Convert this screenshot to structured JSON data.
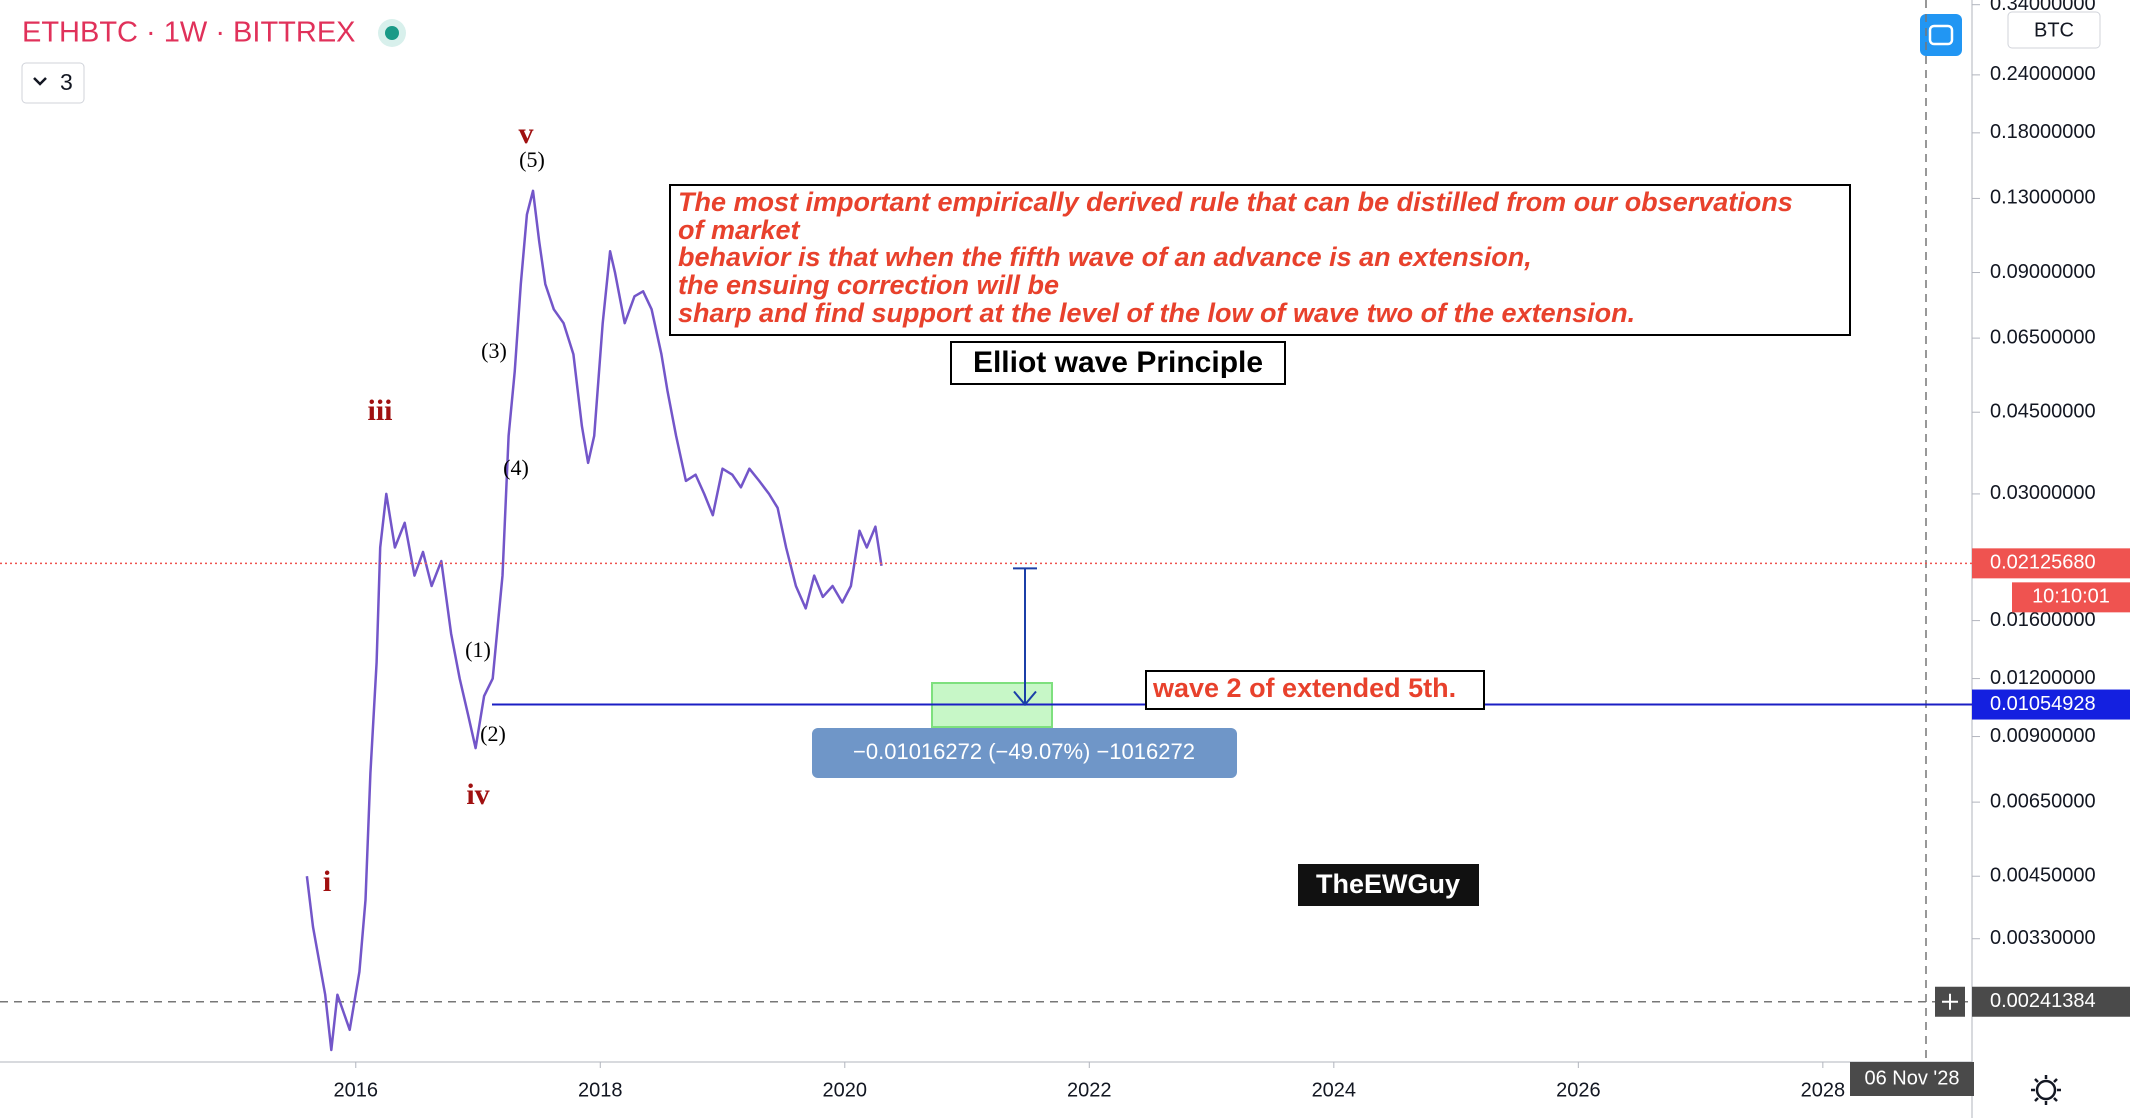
{
  "chart_data": {
    "type": "line",
    "title": "ETHBTC · 1W · BITTREX",
    "legend_toggle": "3",
    "currency": "BTC",
    "log_scale": true,
    "grid": false,
    "x": [
      2015.6,
      2015.65,
      2015.75,
      2015.8,
      2015.85,
      2015.95,
      2016.03,
      2016.08,
      2016.12,
      2016.17,
      2016.2,
      2016.25,
      2016.32,
      2016.4,
      2016.48,
      2016.55,
      2016.62,
      2016.7,
      2016.78,
      2016.85,
      2016.92,
      2016.98,
      2017.05,
      2017.12,
      2017.2,
      2017.25,
      2017.3,
      2017.35,
      2017.4,
      2017.45,
      2017.5,
      2017.55,
      2017.62,
      2017.7,
      2017.78,
      2017.85,
      2017.9,
      2017.95,
      2018.02,
      2018.08,
      2018.12,
      2018.2,
      2018.28,
      2018.35,
      2018.42,
      2018.5,
      2018.55,
      2018.62,
      2018.7,
      2018.78,
      2018.85,
      2018.92,
      2019.0,
      2019.08,
      2019.15,
      2019.22,
      2019.3,
      2019.38,
      2019.45,
      2019.52,
      2019.6,
      2019.68,
      2019.75,
      2019.82,
      2019.9,
      2019.98,
      2020.05,
      2020.12,
      2020.18,
      2020.25,
      2020.3
    ],
    "series": [
      {
        "name": "ETHBTC",
        "color": "#7356c9",
        "values": [
          0.0045,
          0.0035,
          0.0025,
          0.0019,
          0.0025,
          0.0021,
          0.0028,
          0.004,
          0.0075,
          0.013,
          0.023,
          0.03,
          0.023,
          0.026,
          0.02,
          0.0225,
          0.019,
          0.0215,
          0.015,
          0.012,
          0.01,
          0.0085,
          0.011,
          0.012,
          0.02,
          0.04,
          0.055,
          0.085,
          0.12,
          0.135,
          0.105,
          0.085,
          0.075,
          0.07,
          0.06,
          0.042,
          0.035,
          0.04,
          0.07,
          0.1,
          0.09,
          0.07,
          0.08,
          0.082,
          0.075,
          0.06,
          0.05,
          0.04,
          0.032,
          0.033,
          0.03,
          0.027,
          0.034,
          0.033,
          0.031,
          0.034,
          0.032,
          0.03,
          0.028,
          0.023,
          0.019,
          0.017,
          0.02,
          0.018,
          0.019,
          0.0175,
          0.019,
          0.025,
          0.023,
          0.0255,
          0.021
        ]
      }
    ],
    "xlim": [
      2013.09,
      2029.22
    ],
    "xticks": [
      2016,
      2018,
      2020,
      2022,
      2024,
      2026,
      2028
    ],
    "ylim": [
      0.00179,
      0.348
    ],
    "yticks": [
      {
        "value": 0.34,
        "label": "0.34000000"
      },
      {
        "value": 0.24,
        "label": "0.24000000"
      },
      {
        "value": 0.18,
        "label": "0.18000000"
      },
      {
        "value": 0.13,
        "label": "0.13000000"
      },
      {
        "value": 0.09,
        "label": "0.09000000"
      },
      {
        "value": 0.065,
        "label": "0.06500000"
      },
      {
        "value": 0.045,
        "label": "0.04500000"
      },
      {
        "value": 0.03,
        "label": "0.03000000"
      },
      {
        "value": 0.016,
        "label": "0.01600000"
      },
      {
        "value": 0.012,
        "label": "0.01200000"
      },
      {
        "value": 0.009,
        "label": "0.00900000"
      },
      {
        "value": 0.0065,
        "label": "0.00650000"
      },
      {
        "value": 0.0045,
        "label": "0.00450000"
      },
      {
        "value": 0.0033,
        "label": "0.00330000"
      }
    ],
    "last_price": {
      "value": 0.0212568,
      "label": "0.02125680"
    },
    "countdown": "10:10:01",
    "level": {
      "value": 0.01054928,
      "label": "0.01054928"
    },
    "crosshair_price": {
      "value": 0.00241384,
      "label": "0.00241384"
    },
    "crosshair_date": "06 Nov '28",
    "wave_labels": [
      "v",
      "(5)",
      "(3)",
      "iii",
      "(4)",
      "(1)",
      "(2)",
      "iv",
      "i"
    ],
    "note_lines": [
      "The most important empirically derived rule that can be distilled from our observations",
      "of market",
      "behavior is that when the fifth wave of an advance is an extension,",
      "the ensuing correction will be",
      "sharp and find support at the level of the low of wave two of the extension."
    ],
    "note_title": "Elliot wave Principle",
    "level_note": "wave 2 of extended 5th.",
    "measure_label": "−0.01016272 (−49.07%) −1016272",
    "author": "TheEWGuy"
  }
}
